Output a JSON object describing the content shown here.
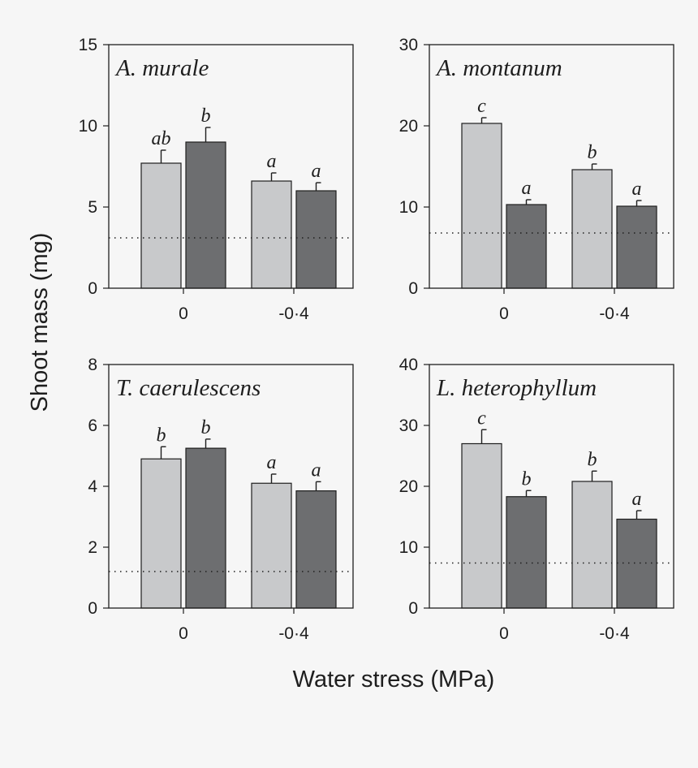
{
  "figure": {
    "ylabel": "Shoot mass (mg)",
    "xlabel": "Water stress (MPa)",
    "colors": {
      "series_light": "#c8c9cb",
      "series_dark": "#6d6e70",
      "axis": "#1e1e1e"
    }
  },
  "chart_data": [
    {
      "type": "bar",
      "title": "A. murale",
      "categories": [
        "0",
        "-0·4"
      ],
      "series": [
        {
          "values": [
            7.7,
            6.6
          ],
          "errors": [
            0.8,
            0.5
          ],
          "letters": [
            "ab",
            "a"
          ]
        },
        {
          "values": [
            9.0,
            6.0
          ],
          "errors": [
            0.9,
            0.5
          ],
          "letters": [
            "b",
            "a"
          ]
        }
      ],
      "reference_line": 3.1,
      "ylim": [
        0,
        15
      ],
      "yticks": [
        0,
        5,
        10,
        15
      ]
    },
    {
      "type": "bar",
      "title": "A. montanum",
      "categories": [
        "0",
        "-0·4"
      ],
      "series": [
        {
          "values": [
            20.3,
            14.6
          ],
          "errors": [
            0.7,
            0.7
          ],
          "letters": [
            "c",
            "b"
          ]
        },
        {
          "values": [
            10.3,
            10.1
          ],
          "errors": [
            0.6,
            0.7
          ],
          "letters": [
            "a",
            "a"
          ]
        }
      ],
      "reference_line": 6.8,
      "ylim": [
        0,
        30
      ],
      "yticks": [
        0,
        10,
        20,
        30
      ]
    },
    {
      "type": "bar",
      "title": "T. caerulescens",
      "categories": [
        "0",
        "-0·4"
      ],
      "series": [
        {
          "values": [
            4.9,
            4.1
          ],
          "errors": [
            0.4,
            0.3
          ],
          "letters": [
            "b",
            "a"
          ]
        },
        {
          "values": [
            5.25,
            3.85
          ],
          "errors": [
            0.3,
            0.3
          ],
          "letters": [
            "b",
            "a"
          ]
        }
      ],
      "reference_line": 1.2,
      "ylim": [
        0,
        8
      ],
      "yticks": [
        0,
        2,
        4,
        6,
        8
      ]
    },
    {
      "type": "bar",
      "title": "L. heterophyllum",
      "categories": [
        "0",
        "-0·4"
      ],
      "series": [
        {
          "values": [
            27.0,
            20.8
          ],
          "errors": [
            2.3,
            1.7
          ],
          "letters": [
            "c",
            "b"
          ]
        },
        {
          "values": [
            18.3,
            14.6
          ],
          "errors": [
            1.0,
            1.4
          ],
          "letters": [
            "b",
            "a"
          ]
        }
      ],
      "reference_line": 7.4,
      "ylim": [
        0,
        40
      ],
      "yticks": [
        0,
        10,
        20,
        30,
        40
      ]
    }
  ]
}
